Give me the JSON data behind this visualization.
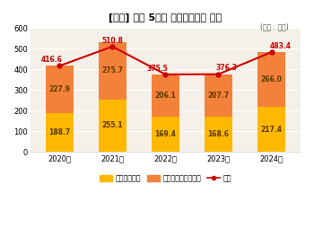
{
  "title": "[그림] 최근 5년간 주식결제대금 수이",
  "unit_label": "(단위 : 조원)",
  "years": [
    "2020년",
    "2021년",
    "2022년",
    "2023년",
    "2024년"
  ],
  "domestic": [
    188.7,
    255.1,
    169.4,
    168.6,
    217.4
  ],
  "fund": [
    227.9,
    275.7,
    206.1,
    207.7,
    266.0
  ],
  "total": [
    416.6,
    510.8,
    375.5,
    376.3,
    483.4
  ],
  "color_domestic": "#FFB800",
  "color_fund": "#F4813A",
  "color_line": "#CC0000",
  "ylim": [
    0,
    600
  ],
  "yticks": [
    0,
    100,
    200,
    300,
    400,
    500,
    600
  ],
  "legend_domestic": "장내주식결제",
  "legend_fund": "주식기관투자자결제",
  "legend_total": "합계",
  "background_color": "#FFFFFF",
  "plot_bg_color": "#F5F0E8",
  "label_color_bar": "#5a3a00",
  "label_color_line": "#CC0000",
  "grid_color": "#FFFFFF"
}
